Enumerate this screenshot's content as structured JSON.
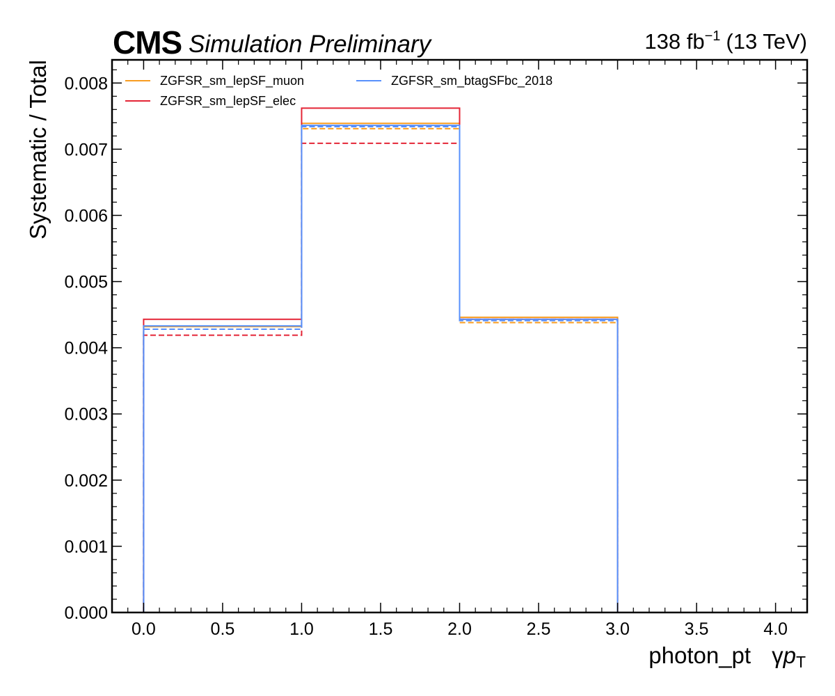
{
  "header": {
    "experiment": "CMS",
    "status": "Simulation Preliminary",
    "lumi_value": "138 fb",
    "lumi_exp": "−1",
    "energy": "(13 TeV)"
  },
  "chart_data": {
    "type": "histogram-step",
    "xlabel_main": "photon_pt",
    "xlabel_symbol_gamma": "γ",
    "xlabel_symbol_p": "p",
    "xlabel_symbol_sub": "T",
    "ylabel": "Systematic / Total",
    "xlim": [
      -0.2,
      4.2
    ],
    "ylim": [
      0,
      0.00835
    ],
    "bin_edges": [
      0,
      1,
      2,
      3
    ],
    "x_ticks": [
      "0.0",
      "0.5",
      "1.0",
      "1.5",
      "2.0",
      "2.5",
      "3.0",
      "3.5",
      "4.0"
    ],
    "y_ticks": [
      "0.000",
      "0.001",
      "0.002",
      "0.003",
      "0.004",
      "0.005",
      "0.006",
      "0.007",
      "0.008"
    ],
    "legend_placement": "top-left",
    "legend_columns": 2,
    "series": [
      {
        "name": "ZGFSR_sm_lepSF_muon",
        "color": "#f89c20",
        "up": [
          0.00432,
          0.00739,
          0.00446
        ],
        "down": [
          0.00428,
          0.00731,
          0.00438
        ]
      },
      {
        "name": "ZGFSR_sm_lepSF_elec",
        "color": "#e42536",
        "up": [
          0.00443,
          0.00762,
          0.00443
        ],
        "down": [
          0.00419,
          0.00709,
          0.00443
        ]
      },
      {
        "name": "ZGFSR_sm_btagSFbc_2018",
        "color": "#5790fc",
        "up": [
          0.00433,
          0.00736,
          0.00443
        ],
        "down": [
          0.00428,
          0.00734,
          0.00441
        ]
      }
    ]
  }
}
